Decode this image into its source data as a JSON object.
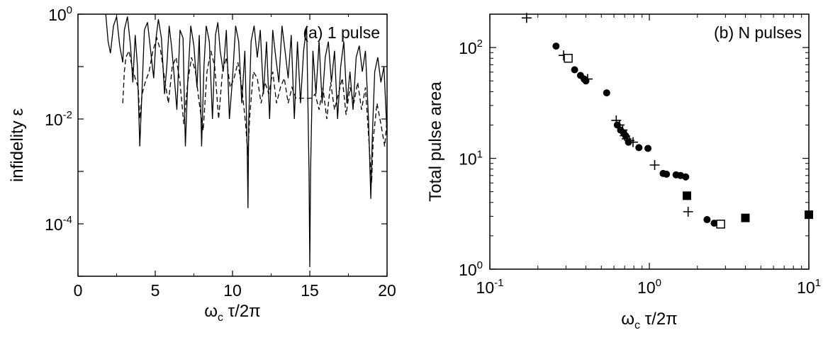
{
  "chart_data": [
    {
      "panel": "a",
      "type": "line",
      "annotation": "(a) 1 pulse",
      "xlabel": {
        "main": "ω",
        "sub": "c",
        "rest": " τ/2π"
      },
      "ylabel": "infidelity ε",
      "xscale": "linear",
      "yscale": "log",
      "xlim": [
        0,
        20
      ],
      "ylim": [
        1e-05,
        1
      ],
      "x_ticks": [
        "0",
        "5",
        "10",
        "15",
        "20"
      ],
      "y_ticks": [
        {
          "base": "10",
          "exp": "0",
          "value": 1
        },
        {
          "base": "10",
          "exp": "-2",
          "value": 0.01
        },
        {
          "base": "10",
          "exp": "-4",
          "value": 0.0001
        }
      ],
      "series": [
        {
          "style": "solid",
          "x": [
            1.8,
            1.95,
            2.1,
            2.3,
            2.5,
            2.7,
            2.9,
            3.0,
            3.2,
            3.4,
            3.55,
            3.7,
            3.85,
            4.0,
            4.15,
            4.3,
            4.5,
            4.7,
            4.9,
            5.05,
            5.2,
            5.4,
            5.6,
            5.75,
            5.9,
            6.05,
            6.2,
            6.4,
            6.6,
            6.8,
            6.95,
            7.1,
            7.3,
            7.5,
            7.7,
            7.85,
            8.0,
            8.15,
            8.3,
            8.5,
            8.7,
            8.9,
            9.05,
            9.2,
            9.4,
            9.6,
            9.8,
            10.0,
            10.2,
            10.4,
            10.6,
            10.8,
            10.95,
            11.0,
            11.05,
            11.2,
            11.4,
            11.6,
            11.8,
            12.0,
            12.2,
            12.4,
            12.6,
            12.8,
            13.0,
            13.2,
            13.4,
            13.6,
            13.8,
            14.0,
            14.2,
            14.4,
            14.6,
            14.8,
            14.95,
            15.0,
            15.05,
            15.2,
            15.4,
            15.6,
            15.8,
            16.0,
            16.2,
            16.4,
            16.6,
            16.8,
            17.0,
            17.2,
            17.4,
            17.6,
            17.8,
            18.0,
            18.2,
            18.4,
            18.6,
            18.8,
            18.95,
            19.05,
            19.2,
            19.4,
            19.6,
            19.8,
            20.0
          ],
          "y": [
            1.0,
            0.3,
            0.18,
            0.6,
            0.9,
            0.25,
            0.12,
            0.5,
            0.9,
            0.25,
            0.05,
            0.4,
            0.1,
            0.003,
            0.04,
            0.5,
            0.7,
            0.2,
            0.06,
            0.35,
            0.8,
            0.35,
            0.03,
            0.1,
            0.6,
            0.25,
            0.08,
            0.015,
            0.5,
            0.35,
            0.003,
            0.05,
            0.6,
            0.25,
            0.04,
            0.4,
            0.003,
            0.1,
            0.6,
            0.3,
            0.01,
            0.4,
            0.7,
            0.2,
            0.08,
            0.5,
            0.01,
            0.06,
            0.6,
            0.3,
            0.02,
            0.2,
            0.003,
            0.0002,
            0.01,
            0.3,
            0.6,
            0.15,
            0.5,
            0.03,
            0.3,
            0.01,
            0.5,
            0.15,
            0.05,
            0.6,
            0.2,
            0.06,
            0.4,
            0.01,
            0.3,
            0.02,
            0.2,
            0.6,
            0.001,
            1.5e-05,
            0.001,
            0.2,
            0.03,
            0.3,
            0.02,
            0.15,
            0.3,
            0.05,
            0.2,
            0.01,
            0.1,
            0.3,
            0.02,
            0.08,
            0.015,
            0.15,
            0.25,
            0.08,
            0.2,
            0.01,
            0.0003,
            0.005,
            0.08,
            0.15,
            0.05,
            0.1,
            0.005
          ]
        },
        {
          "style": "dashed",
          "x": [
            2.9,
            3.0,
            3.1,
            3.3,
            3.5,
            3.7,
            3.9,
            4.0,
            4.15,
            4.35,
            4.6,
            4.85,
            5.1,
            5.35,
            5.6,
            5.85,
            6.1,
            6.35,
            6.6,
            6.85,
            7.1,
            7.35,
            7.6,
            7.85,
            8.1,
            8.35,
            8.6,
            8.85,
            9.1,
            9.35,
            9.6,
            9.85,
            10.1,
            10.35,
            10.6,
            10.85,
            11.0,
            11.1,
            11.35,
            11.6,
            11.85,
            12.1,
            12.35,
            12.6,
            12.85,
            13.1,
            13.35,
            13.6,
            13.85,
            14.1,
            14.35,
            14.6,
            14.85,
            15.1,
            15.35,
            15.6,
            15.85,
            16.1,
            16.35,
            16.6,
            16.85,
            17.1,
            17.35,
            17.6,
            17.85,
            18.1,
            18.35,
            18.6,
            18.85,
            19.0,
            19.1,
            19.35,
            19.6,
            19.85,
            20.0
          ],
          "y": [
            0.02,
            0.08,
            0.15,
            0.2,
            0.1,
            0.06,
            0.04,
            0.01,
            0.03,
            0.05,
            0.08,
            0.2,
            0.35,
            0.2,
            0.06,
            0.02,
            0.1,
            0.15,
            0.05,
            0.008,
            0.05,
            0.15,
            0.08,
            0.02,
            0.006,
            0.08,
            0.2,
            0.1,
            0.01,
            0.08,
            0.15,
            0.04,
            0.06,
            0.12,
            0.04,
            0.008,
            0.002,
            0.01,
            0.08,
            0.06,
            0.02,
            0.05,
            0.03,
            0.08,
            0.02,
            0.04,
            0.06,
            0.02,
            0.04,
            0.025,
            0.025,
            0.025,
            0.025,
            0.025,
            0.03,
            0.015,
            0.04,
            0.01,
            0.05,
            0.015,
            0.03,
            0.06,
            0.012,
            0.04,
            0.02,
            0.05,
            0.015,
            0.04,
            0.003,
            0.0006,
            0.004,
            0.02,
            0.008,
            0.003,
            0.01
          ]
        }
      ]
    },
    {
      "panel": "b",
      "type": "scatter",
      "annotation": "(b) N pulses",
      "xlabel": {
        "main": "ω",
        "sub": "c",
        "rest": " τ/2π"
      },
      "ylabel": "Total pulse area",
      "xscale": "log",
      "yscale": "log",
      "xlim": [
        0.1,
        10
      ],
      "ylim": [
        1,
        200
      ],
      "x_ticks": [
        {
          "base": "10",
          "exp": "-1",
          "value": 0.1
        },
        {
          "base": "10",
          "exp": "0",
          "value": 1
        },
        {
          "base": "10",
          "exp": "1",
          "value": 10
        }
      ],
      "y_ticks": [
        {
          "base": "10",
          "exp": "0",
          "value": 1
        },
        {
          "base": "10",
          "exp": "1",
          "value": 10
        },
        {
          "base": "10",
          "exp": "2",
          "value": 100
        }
      ],
      "series": [
        {
          "marker": "filled-circle",
          "x": [
            0.26,
            0.34,
            0.37,
            0.39,
            0.4,
            0.54,
            0.63,
            0.66,
            0.69,
            0.71,
            0.74,
            0.86,
            0.98,
            1.22,
            1.28,
            1.47,
            1.57,
            1.69,
            2.3,
            2.55
          ],
          "y": [
            103,
            63,
            56,
            52,
            50,
            39,
            20,
            18,
            17,
            16,
            14,
            12.5,
            12.3,
            7.3,
            7.2,
            7.1,
            7.0,
            6.8,
            2.8,
            2.6
          ]
        },
        {
          "marker": "plus",
          "x": [
            0.17,
            0.29,
            0.41,
            0.62,
            0.65,
            0.68,
            0.7,
            0.72,
            0.75,
            0.79,
            1.08,
            1.75
          ],
          "y": [
            185,
            85,
            52,
            22,
            20,
            18,
            16,
            15,
            14.5,
            14,
            8.7,
            3.3
          ]
        },
        {
          "marker": "open-square",
          "x": [
            0.31,
            2.8
          ],
          "y": [
            80,
            2.55
          ]
        },
        {
          "marker": "filled-square",
          "x": [
            1.72,
            4.0,
            10.0
          ],
          "y": [
            4.6,
            2.9,
            3.1
          ]
        }
      ]
    }
  ]
}
